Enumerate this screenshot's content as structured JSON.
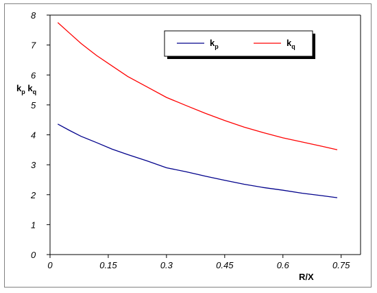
{
  "chart_data": {
    "type": "line",
    "xlabel": "R/X",
    "ylabel": {
      "main": "k",
      "sub1": "p",
      "mid": " k",
      "sub2": "q"
    },
    "xlim": [
      0,
      0.8
    ],
    "ylim": [
      0,
      8
    ],
    "x_ticks": [
      0,
      0.15,
      0.3,
      0.45,
      0.6,
      0.75
    ],
    "x_tick_labels": [
      "0",
      "0.15",
      "0.3",
      "0.45",
      "0.6",
      "0.75"
    ],
    "y_ticks": [
      0,
      1,
      2,
      3,
      4,
      5,
      6,
      7,
      8
    ],
    "y_tick_labels": [
      "0",
      "1",
      "2",
      "3",
      "4",
      "5",
      "6",
      "7",
      "8"
    ],
    "legend_position": "top-right",
    "grid": false,
    "series": [
      {
        "name": {
          "main": "k",
          "sub": "p"
        },
        "color": "#00008b",
        "x": [
          0.02,
          0.05,
          0.08,
          0.12,
          0.16,
          0.2,
          0.25,
          0.3,
          0.35,
          0.4,
          0.45,
          0.5,
          0.55,
          0.6,
          0.65,
          0.7,
          0.74
        ],
        "values": [
          4.36,
          4.15,
          3.95,
          3.74,
          3.52,
          3.34,
          3.13,
          2.9,
          2.77,
          2.62,
          2.48,
          2.35,
          2.24,
          2.15,
          2.05,
          1.97,
          1.9
        ]
      },
      {
        "name": {
          "main": "k",
          "sub": "q"
        },
        "color": "#ff0000",
        "x": [
          0.02,
          0.05,
          0.08,
          0.12,
          0.16,
          0.2,
          0.25,
          0.3,
          0.35,
          0.4,
          0.45,
          0.5,
          0.55,
          0.6,
          0.65,
          0.7,
          0.74
        ],
        "values": [
          7.75,
          7.4,
          7.05,
          6.65,
          6.3,
          5.95,
          5.6,
          5.25,
          4.98,
          4.72,
          4.48,
          4.26,
          4.07,
          3.9,
          3.76,
          3.62,
          3.5
        ]
      }
    ]
  }
}
